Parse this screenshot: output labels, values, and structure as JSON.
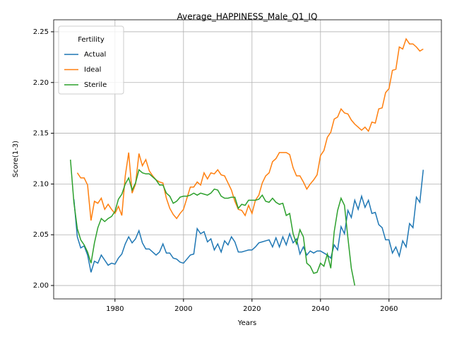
{
  "chart_data": {
    "type": "line",
    "title": "Average_HAPPINESS_Male_Q1_IQ",
    "xlabel": "Years",
    "ylabel": "Score(1-3)",
    "x": [
      1967,
      1968,
      1969,
      1970,
      1971,
      1972,
      1973,
      1974,
      1975,
      1976,
      1977,
      1978,
      1979,
      1980,
      1981,
      1982,
      1983,
      1984,
      1985,
      1986,
      1987,
      1988,
      1989,
      1990,
      1991,
      1992,
      1993,
      1994,
      1995,
      1996,
      1997,
      1998,
      1999,
      2000,
      2001,
      2002,
      2003,
      2004,
      2005,
      2006,
      2007,
      2008,
      2009,
      2010,
      2011,
      2012,
      2013,
      2014,
      2015,
      2016,
      2017,
      2018,
      2019,
      2020,
      2021,
      2022,
      2023,
      2024,
      2025,
      2026,
      2027,
      2028,
      2029,
      2030,
      2031,
      2032,
      2033,
      2034,
      2035,
      2036,
      2037,
      2038,
      2039,
      2040,
      2041,
      2042,
      2043,
      2044,
      2045,
      2046,
      2047,
      2048,
      2049,
      2050,
      2051,
      2052,
      2053,
      2054,
      2055,
      2056,
      2057,
      2058,
      2059,
      2060,
      2061,
      2062,
      2063,
      2064,
      2065,
      2066,
      2067,
      2068,
      2069,
      2070
    ],
    "series": [
      {
        "name": "Actual",
        "color": "#1f77b4",
        "values": [
          null,
          2.085,
          2.048,
          2.037,
          2.039,
          2.03,
          2.013,
          2.024,
          2.022,
          2.03,
          2.025,
          2.02,
          2.022,
          2.021,
          2.027,
          2.031,
          2.041,
          2.048,
          2.042,
          2.046,
          2.054,
          2.042,
          2.036,
          2.036,
          2.033,
          2.03,
          2.033,
          2.041,
          2.032,
          2.032,
          2.027,
          2.026,
          2.023,
          2.022,
          2.026,
          2.03,
          2.031,
          2.056,
          2.051,
          2.053,
          2.043,
          2.046,
          2.035,
          2.041,
          2.033,
          2.044,
          2.04,
          2.048,
          2.043,
          2.033,
          2.033,
          2.034,
          2.035,
          2.035,
          2.038,
          2.042,
          2.043,
          2.044,
          2.045,
          2.038,
          2.047,
          2.038,
          2.048,
          2.04,
          2.051,
          2.042,
          2.046,
          2.031,
          2.038,
          2.03,
          2.034,
          2.032,
          2.034,
          2.034,
          2.032,
          2.03,
          2.027,
          2.04,
          2.035,
          2.058,
          2.051,
          2.074,
          2.067,
          2.084,
          2.075,
          2.088,
          2.077,
          2.084,
          2.071,
          2.072,
          2.06,
          2.057,
          2.045,
          2.045,
          2.032,
          2.038,
          2.029,
          2.044,
          2.038,
          2.061,
          2.057,
          2.087,
          2.082,
          2.114
        ]
      },
      {
        "name": "Ideal",
        "color": "#ff7f0e",
        "values": [
          null,
          null,
          2.111,
          2.106,
          2.106,
          2.099,
          2.064,
          2.083,
          2.081,
          2.086,
          2.075,
          2.08,
          2.075,
          2.071,
          2.078,
          2.069,
          2.108,
          2.131,
          2.091,
          2.1,
          2.13,
          2.118,
          2.124,
          2.113,
          2.108,
          2.104,
          2.102,
          2.101,
          2.086,
          2.076,
          2.07,
          2.066,
          2.071,
          2.075,
          2.086,
          2.097,
          2.097,
          2.102,
          2.099,
          2.111,
          2.105,
          2.111,
          2.11,
          2.114,
          2.109,
          2.108,
          2.101,
          2.094,
          2.083,
          2.075,
          2.074,
          2.069,
          2.079,
          2.071,
          2.084,
          2.089,
          2.101,
          2.108,
          2.111,
          2.122,
          2.125,
          2.131,
          2.131,
          2.131,
          2.129,
          2.116,
          2.108,
          2.108,
          2.102,
          2.095,
          2.1,
          2.104,
          2.109,
          2.128,
          2.133,
          2.146,
          2.151,
          2.164,
          2.166,
          2.174,
          2.17,
          2.169,
          2.163,
          2.159,
          2.156,
          2.153,
          2.156,
          2.152,
          2.161,
          2.16,
          2.174,
          2.175,
          2.19,
          2.194,
          2.212,
          2.213,
          2.235,
          2.233,
          2.243,
          2.238,
          2.238,
          2.235,
          2.231,
          2.233
        ]
      },
      {
        "name": "Sterile",
        "color": "#2ca02c",
        "values": [
          2.124,
          2.082,
          2.056,
          2.045,
          2.04,
          2.033,
          2.022,
          2.042,
          2.057,
          2.066,
          2.063,
          2.066,
          2.068,
          2.073,
          2.085,
          2.09,
          2.1,
          2.106,
          2.094,
          2.101,
          2.114,
          2.111,
          2.11,
          2.11,
          2.107,
          2.104,
          2.099,
          2.099,
          2.091,
          2.088,
          2.081,
          2.083,
          2.087,
          2.088,
          2.088,
          2.089,
          2.091,
          2.089,
          2.091,
          2.09,
          2.089,
          2.091,
          2.095,
          2.094,
          2.088,
          2.086,
          2.086,
          2.087,
          2.087,
          2.076,
          2.08,
          2.079,
          2.084,
          2.084,
          2.084,
          2.085,
          2.089,
          2.083,
          2.082,
          2.086,
          2.082,
          2.08,
          2.081,
          2.069,
          2.071,
          2.051,
          2.041,
          2.055,
          2.048,
          2.022,
          2.019,
          2.012,
          2.013,
          2.022,
          2.019,
          2.031,
          2.017,
          2.053,
          2.074,
          2.086,
          2.079,
          2.047,
          2.017,
          2.0,
          null,
          null,
          null,
          null,
          null,
          null,
          null,
          null,
          null,
          null,
          null,
          null,
          null,
          null,
          null,
          null,
          null,
          null,
          null,
          null
        ]
      }
    ],
    "xlim": [
      1962.1,
      2075.3
    ],
    "ylim": [
      1.9868,
      2.2618
    ],
    "xticks": [
      1980,
      2000,
      2020,
      2040,
      2060
    ],
    "yticks": [
      {
        "value": 2,
        "label": "2.00"
      },
      2.05,
      {
        "value": 2.1,
        "label": "2.10"
      },
      2.15,
      {
        "value": 2.2,
        "label": "2.20"
      },
      2.25
    ],
    "grid": true,
    "legend_title": "Fertility",
    "legend_loc": "upper left"
  }
}
